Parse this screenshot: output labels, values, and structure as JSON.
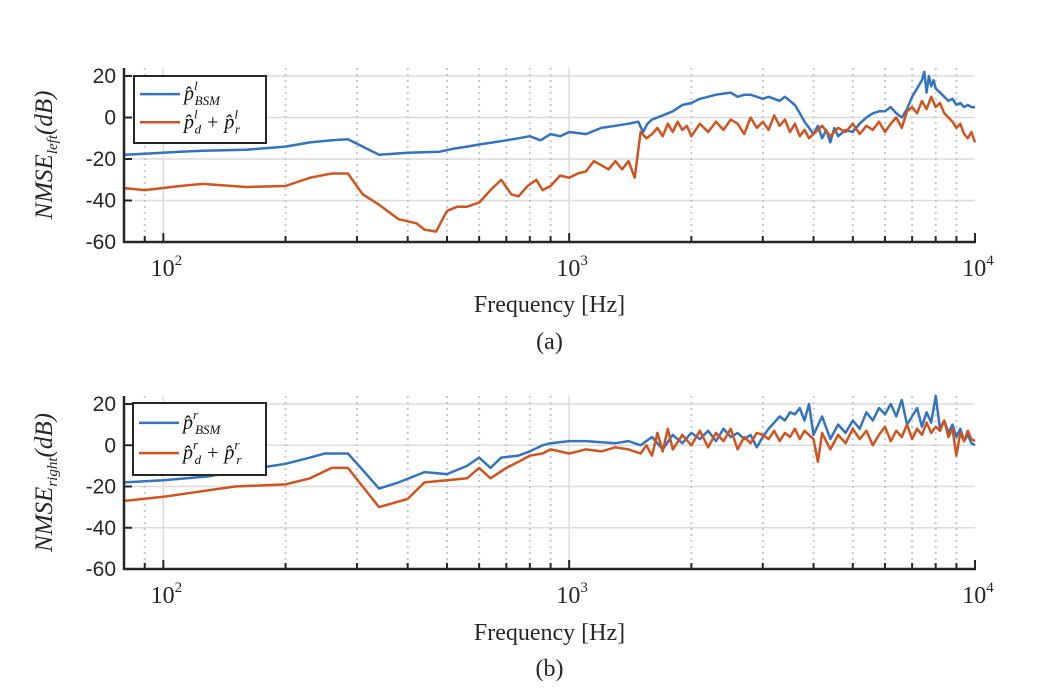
{
  "colors": {
    "series1": "#3474bf",
    "series2": "#cf5420",
    "axis": "#262626",
    "grid_major": "#dcdcdc",
    "grid_minor": "#c8c8c8"
  },
  "chart_data": [
    {
      "type": "line",
      "panel_label": "(a)",
      "xlabel": "Frequency [Hz]",
      "ylabel": "NMSE",
      "ylabel_sub": "left",
      "ylabel_unit": "(dB)",
      "xscale": "log",
      "xlim": [
        80,
        10000
      ],
      "ylim": [
        -60,
        25
      ],
      "yticks": [
        20,
        0,
        -20,
        -40,
        -60
      ],
      "ytick_labels": [
        "20",
        "0",
        "-20",
        "-40",
        "-60"
      ],
      "xticks": [
        100,
        1000,
        10000
      ],
      "xtick_labels": [
        {
          "base": "10",
          "exp": "2"
        },
        {
          "base": "10",
          "exp": "3"
        },
        {
          "base": "10",
          "exp": "4"
        }
      ],
      "grid": true,
      "legend_position": "top-left",
      "series": [
        {
          "name": "p̂ˡ_BSM",
          "legend_main": "p̂",
          "legend_sup": "l",
          "legend_sub": "BSM",
          "x": [
            80,
            90,
            110,
            125,
            160,
            200,
            230,
            260,
            285,
            340,
            400,
            480,
            520,
            560,
            600,
            650,
            700,
            750,
            800,
            850,
            900,
            950,
            1000,
            1100,
            1200,
            1300,
            1400,
            1480,
            1520,
            1560,
            1600,
            1700,
            1800,
            1900,
            2000,
            2100,
            2200,
            2300,
            2400,
            2500,
            2600,
            2700,
            2800,
            2900,
            3000,
            3100,
            3200,
            3300,
            3400,
            3500,
            3600,
            3700,
            3800,
            3900,
            4000,
            4100,
            4200,
            4300,
            4400,
            4500,
            4600,
            4800,
            5000,
            5200,
            5400,
            5600,
            5800,
            6000,
            6200,
            6400,
            6600,
            6800,
            7000,
            7200,
            7400,
            7500,
            7600,
            7700,
            7800,
            7900,
            8000,
            8200,
            8400,
            8600,
            8800,
            9000,
            9200,
            9400,
            9600,
            9800,
            10000
          ],
          "y": [
            -18,
            -17.5,
            -16.5,
            -16,
            -15.5,
            -14,
            -12,
            -11,
            -10.5,
            -18,
            -17,
            -16.5,
            -15,
            -14,
            -13,
            -12,
            -11,
            -10,
            -9,
            -11,
            -8,
            -9,
            -7,
            -8,
            -5,
            -4,
            -3,
            -2,
            -7,
            -3,
            -1,
            1,
            3,
            6,
            7,
            9,
            10,
            11,
            11.5,
            12,
            10,
            11,
            11,
            10,
            9,
            10,
            9,
            8,
            10,
            8,
            6,
            2,
            -2,
            -5,
            -8,
            -4,
            -10,
            -6,
            -12,
            -5,
            -9,
            -6,
            -7,
            -3,
            0,
            2,
            3,
            3,
            5,
            2,
            0,
            4,
            10,
            14,
            18,
            22,
            12,
            20,
            15,
            18,
            14,
            12,
            10,
            8,
            9,
            6,
            7,
            5,
            6,
            5,
            5
          ]
        },
        {
          "name": "p̂ˡ_d + p̂ˡ_r",
          "legend_main": "p̂",
          "legend_sup": "l",
          "legend_sub": "d",
          "legend_plus": "+",
          "legend_main2": "p̂",
          "legend_sup2": "l",
          "legend_sub2": "r",
          "x": [
            80,
            90,
            110,
            125,
            160,
            200,
            230,
            260,
            285,
            310,
            340,
            380,
            420,
            440,
            470,
            500,
            530,
            560,
            600,
            640,
            680,
            720,
            750,
            790,
            830,
            860,
            900,
            950,
            1000,
            1050,
            1100,
            1150,
            1200,
            1250,
            1300,
            1350,
            1400,
            1450,
            1500,
            1550,
            1600,
            1650,
            1700,
            1750,
            1800,
            1850,
            1900,
            1950,
            2000,
            2100,
            2200,
            2300,
            2400,
            2500,
            2600,
            2700,
            2800,
            2900,
            3000,
            3100,
            3200,
            3300,
            3400,
            3500,
            3600,
            3700,
            3800,
            3900,
            4000,
            4200,
            4400,
            4600,
            4800,
            5000,
            5200,
            5400,
            5600,
            5800,
            6000,
            6200,
            6400,
            6600,
            6800,
            7000,
            7200,
            7400,
            7600,
            7800,
            8000,
            8200,
            8400,
            8600,
            8800,
            9000,
            9200,
            9400,
            9600,
            9800,
            10000
          ],
          "y": [
            -34,
            -35,
            -33,
            -32,
            -33.5,
            -33,
            -29,
            -27,
            -27,
            -37,
            -42,
            -49,
            -51,
            -54,
            -55,
            -45,
            -43,
            -43,
            -41,
            -35,
            -30,
            -37,
            -38,
            -33,
            -30,
            -35,
            -33,
            -28,
            -29,
            -27,
            -26,
            -21,
            -23,
            -25,
            -21,
            -25,
            -21,
            -29,
            -7,
            -10,
            -8,
            -5,
            -9,
            -3,
            -7,
            -2,
            -6,
            -4,
            -9,
            -3,
            -7,
            -2,
            -6,
            -1,
            -3,
            -8,
            0,
            -5,
            -2,
            -6,
            1,
            -4,
            -1,
            -7,
            -3,
            -9,
            -6,
            -10,
            -8,
            -4,
            -9,
            -5,
            -7,
            -3,
            -8,
            -4,
            -6,
            -2,
            -7,
            -3,
            0,
            -5,
            3,
            5,
            2,
            8,
            4,
            10,
            5,
            7,
            2,
            0,
            -2,
            -5,
            -3,
            -8,
            -10,
            -7,
            -12
          ]
        }
      ]
    },
    {
      "type": "line",
      "panel_label": "(b)",
      "xlabel": "Frequency [Hz]",
      "ylabel": "NMSE",
      "ylabel_sub": "right",
      "ylabel_unit": "(dB)",
      "xscale": "log",
      "xlim": [
        80,
        10000
      ],
      "ylim": [
        -60,
        25
      ],
      "yticks": [
        20,
        0,
        -20,
        -40,
        -60
      ],
      "ytick_labels": [
        "20",
        "0",
        "-20",
        "-40",
        "-60"
      ],
      "xticks": [
        100,
        1000,
        10000
      ],
      "xtick_labels": [
        {
          "base": "10",
          "exp": "2"
        },
        {
          "base": "10",
          "exp": "3"
        },
        {
          "base": "10",
          "exp": "4"
        }
      ],
      "grid": true,
      "legend_position": "top-left",
      "series": [
        {
          "name": "p̂ʳ_BSM",
          "legend_main": "p̂",
          "legend_sup": "r",
          "legend_sub": "BSM",
          "x": [
            80,
            100,
            130,
            160,
            200,
            230,
            250,
            285,
            310,
            340,
            380,
            440,
            500,
            560,
            600,
            640,
            680,
            750,
            800,
            860,
            900,
            1000,
            1100,
            1200,
            1300,
            1400,
            1500,
            1600,
            1700,
            1800,
            1900,
            2000,
            2100,
            2200,
            2300,
            2400,
            2500,
            2600,
            2700,
            2800,
            2900,
            3000,
            3100,
            3200,
            3300,
            3400,
            3500,
            3600,
            3700,
            3800,
            3900,
            4000,
            4200,
            4400,
            4600,
            4800,
            5000,
            5200,
            5400,
            5600,
            5800,
            6000,
            6200,
            6400,
            6600,
            6800,
            7000,
            7200,
            7400,
            7600,
            7800,
            8000,
            8200,
            8400,
            8600,
            8800,
            9000,
            9200,
            9400,
            9600,
            9800,
            10000
          ],
          "y": [
            -18,
            -17,
            -15,
            -12,
            -9,
            -6,
            -4,
            -4,
            -12,
            -21,
            -18,
            -13,
            -14,
            -10,
            -6,
            -11,
            -6,
            -5,
            -3,
            0,
            1,
            2,
            2,
            1.5,
            1,
            2,
            0,
            4,
            -2,
            5,
            1,
            6,
            3,
            7,
            2,
            8,
            4,
            6,
            3,
            5,
            -1,
            4,
            8,
            11,
            14,
            12,
            16,
            15,
            18,
            12,
            20,
            5,
            14,
            3,
            10,
            6,
            12,
            8,
            16,
            12,
            18,
            15,
            20,
            14,
            22,
            10,
            14,
            18,
            9,
            16,
            11,
            24,
            8,
            12,
            6,
            10,
            4,
            8,
            2,
            5,
            1,
            0
          ]
        },
        {
          "name": "p̂ʳ_d + p̂ʳ_r",
          "legend_main": "p̂",
          "legend_sup": "r",
          "legend_sub": "d",
          "legend_plus": "+",
          "legend_main2": "p̂",
          "legend_sup2": "r",
          "legend_sub2": "r",
          "x": [
            80,
            100,
            150,
            200,
            230,
            260,
            285,
            310,
            340,
            400,
            440,
            500,
            560,
            600,
            640,
            700,
            750,
            800,
            860,
            900,
            1000,
            1100,
            1200,
            1300,
            1400,
            1500,
            1550,
            1600,
            1650,
            1700,
            1750,
            1800,
            1900,
            2000,
            2100,
            2200,
            2300,
            2400,
            2500,
            2600,
            2700,
            2800,
            2900,
            3000,
            3100,
            3200,
            3300,
            3400,
            3500,
            3600,
            3700,
            3800,
            3900,
            4000,
            4100,
            4200,
            4400,
            4600,
            4800,
            5000,
            5200,
            5400,
            5600,
            5800,
            6000,
            6200,
            6400,
            6600,
            6800,
            7000,
            7200,
            7400,
            7600,
            7800,
            8000,
            8200,
            8400,
            8600,
            8800,
            9000,
            9200,
            9400,
            9600,
            9800,
            10000
          ],
          "y": [
            -27,
            -25,
            -20,
            -19,
            -16,
            -11,
            -11,
            -20,
            -30,
            -26,
            -18,
            -17,
            -16,
            -11,
            -16,
            -11,
            -8,
            -5,
            -4,
            -2,
            -4,
            -2,
            -3,
            -1,
            -2,
            -4,
            0,
            -5,
            6,
            -3,
            8,
            -2,
            5,
            0,
            7,
            -1,
            6,
            2,
            8,
            -2,
            4,
            1,
            6,
            5,
            3,
            7,
            2,
            6,
            4,
            8,
            3,
            7,
            5,
            3,
            -8,
            6,
            -2,
            5,
            1,
            8,
            3,
            7,
            0,
            5,
            9,
            2,
            7,
            4,
            10,
            3,
            8,
            5,
            11,
            6,
            9,
            7,
            12,
            4,
            8,
            -5,
            6,
            2,
            7,
            3,
            2
          ]
        }
      ]
    }
  ]
}
